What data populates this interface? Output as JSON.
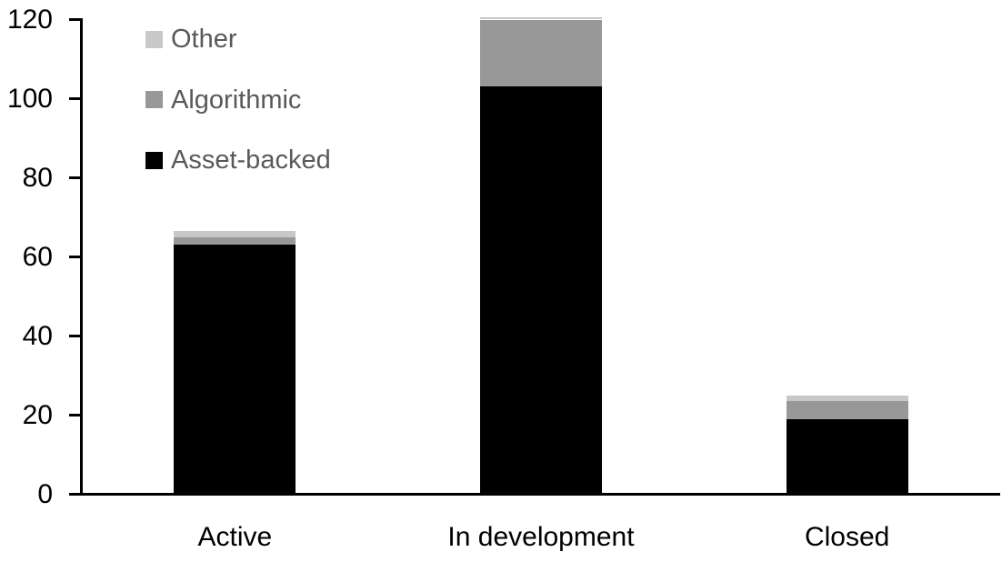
{
  "chart_data": {
    "type": "bar",
    "subtype": "stacked-vertical",
    "title": "",
    "xlabel": "",
    "ylabel": "",
    "categories": [
      "Active",
      "In development",
      "Closed"
    ],
    "series": [
      {
        "name": "Asset-backed",
        "color": "#000000",
        "values": [
          63,
          103,
          19
        ]
      },
      {
        "name": "Algorithmic",
        "color": "#989898",
        "values": [
          2,
          17,
          4.5
        ]
      },
      {
        "name": "Other",
        "color": "#c8c8c8",
        "values": [
          1.5,
          0.5,
          1.5
        ]
      }
    ],
    "stack_totals": [
      66.5,
      120.5,
      25
    ],
    "legend": {
      "position": "top-left-inside",
      "order": [
        "Other",
        "Algorithmic",
        "Asset-backed"
      ],
      "text_color": "#595959"
    },
    "y_ticks": [
      0,
      20,
      40,
      60,
      80,
      100,
      120
    ],
    "ylim": [
      0,
      120
    ],
    "grid": false,
    "axis_color": "#000000",
    "tick_label_color": "#000000",
    "background_color": "#ffffff"
  }
}
